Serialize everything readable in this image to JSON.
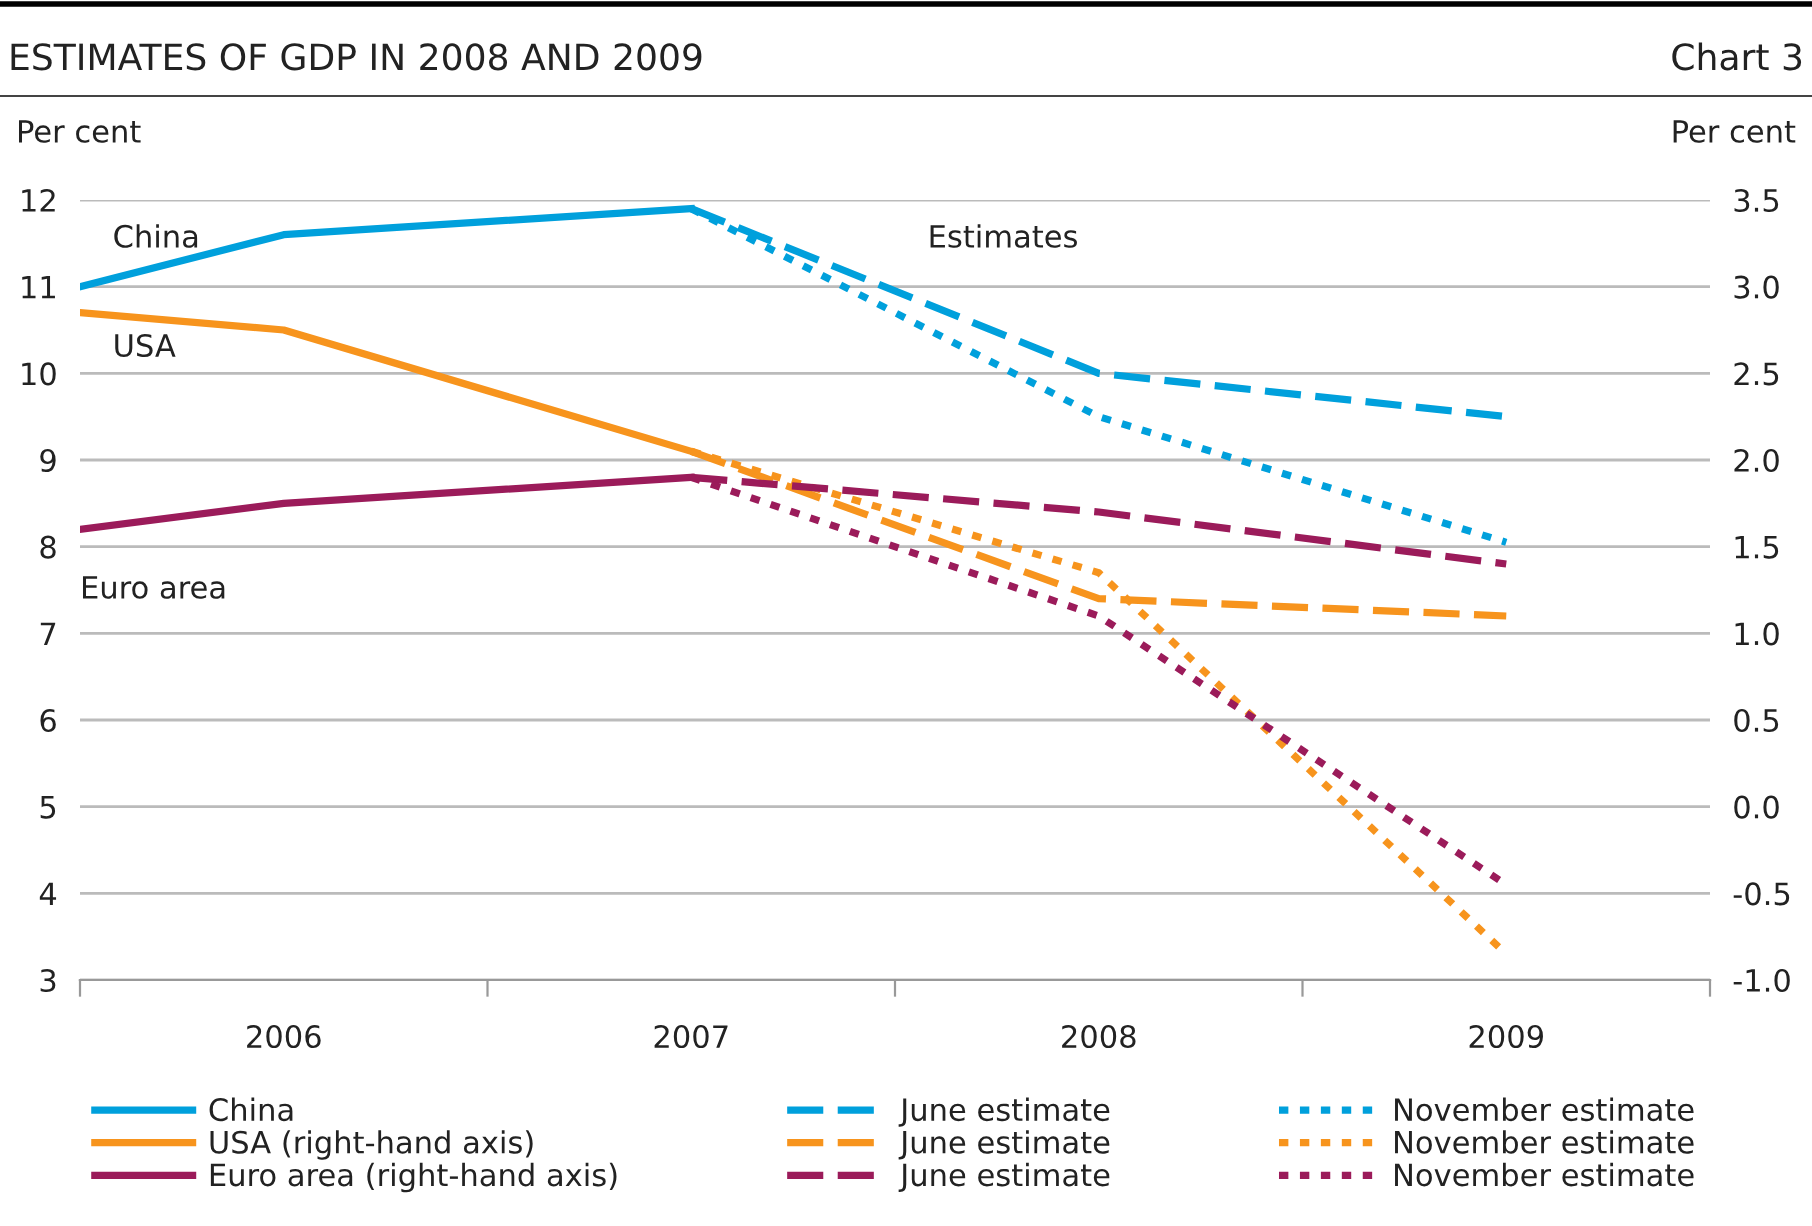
{
  "chart_data": {
    "type": "line",
    "title": "ESTIMATES OF GDP IN 2008 AND 2009",
    "subtitle": "Chart 3",
    "ylabel": "Per cent",
    "y2label": "Per cent",
    "annotations": [
      "China",
      "USA",
      "Euro area",
      "Estimates"
    ],
    "xlim": [
      2005.5,
      2009.5
    ],
    "xticks": [
      {
        "value": 2005.5,
        "label": null
      },
      2006,
      {
        "value": 2006.5,
        "label": null
      },
      2007,
      {
        "value": 2007.5,
        "label": null
      },
      2008,
      {
        "value": 2008.5,
        "label": null
      },
      2009,
      {
        "value": 2009.5,
        "label": null
      }
    ],
    "ylim": [
      3,
      12
    ],
    "yticks": [
      3,
      4,
      5,
      6,
      7,
      8,
      9,
      10,
      11,
      12
    ],
    "y2lim": [
      -1.0,
      3.5
    ],
    "y2ticks": [
      {
        "value": -1.0,
        "label": "-1.0"
      },
      {
        "value": -0.5,
        "label": "-0.5"
      },
      {
        "value": 0.0,
        "label": "0.0"
      },
      {
        "value": 0.5,
        "label": "0.5"
      },
      {
        "value": 1.0,
        "label": "1.0"
      },
      {
        "value": 1.5,
        "label": "1.5"
      },
      {
        "value": 2.0,
        "label": "2.0"
      },
      {
        "value": 2.5,
        "label": "2.5"
      },
      {
        "value": 3.0,
        "label": "3.0"
      },
      {
        "value": 3.5,
        "label": "3.5"
      }
    ],
    "grid": "y",
    "legend": "bottom",
    "marker": "none",
    "series": [
      {
        "name": "China",
        "color": "#00a0dc",
        "line_style": "solid",
        "x": [
          2005.5,
          2006,
          2007
        ],
        "values": [
          11.0,
          11.6,
          11.9
        ]
      },
      {
        "name": "June estimate",
        "color": "#00a0dc",
        "line_style": "dashed",
        "x": [
          2007,
          2008,
          2009
        ],
        "values": [
          11.9,
          10.0,
          9.5
        ]
      },
      {
        "name": "November estimate",
        "color": "#00a0dc",
        "line_style": "dotted",
        "x": [
          2007,
          2008,
          2009
        ],
        "values": [
          11.9,
          9.5,
          8.05
        ]
      },
      {
        "name": "USA (right-hand axis)",
        "color": "#f7941d",
        "line_style": "solid",
        "axis": "y2",
        "x": [
          2005.5,
          2006,
          2007
        ],
        "values": [
          2.85,
          2.75,
          2.05
        ]
      },
      {
        "name": "June estimate",
        "color": "#f7941d",
        "line_style": "dashed",
        "axis": "y2",
        "x": [
          2007,
          2008,
          2009
        ],
        "values": [
          2.05,
          1.2,
          1.1
        ]
      },
      {
        "name": "November estimate",
        "color": "#f7941d",
        "line_style": "dotted",
        "axis": "y2",
        "x": [
          2007,
          2008,
          2009
        ],
        "values": [
          2.05,
          1.35,
          -0.85
        ]
      },
      {
        "name": "Euro area (right-hand axis)",
        "color": "#9b1b5a",
        "line_style": "solid",
        "axis": "y2",
        "x": [
          2005.5,
          2006,
          2007
        ],
        "values": [
          1.6,
          1.75,
          1.9
        ]
      },
      {
        "name": "June estimate",
        "color": "#9b1b5a",
        "line_style": "dashed",
        "axis": "y2",
        "x": [
          2007,
          2008,
          2009
        ],
        "values": [
          1.9,
          1.7,
          1.4
        ]
      },
      {
        "name": "November estimate",
        "color": "#9b1b5a",
        "line_style": "dotted",
        "axis": "y2",
        "x": [
          2007,
          2008,
          2009
        ],
        "values": [
          1.9,
          1.1,
          -0.45
        ]
      }
    ]
  }
}
